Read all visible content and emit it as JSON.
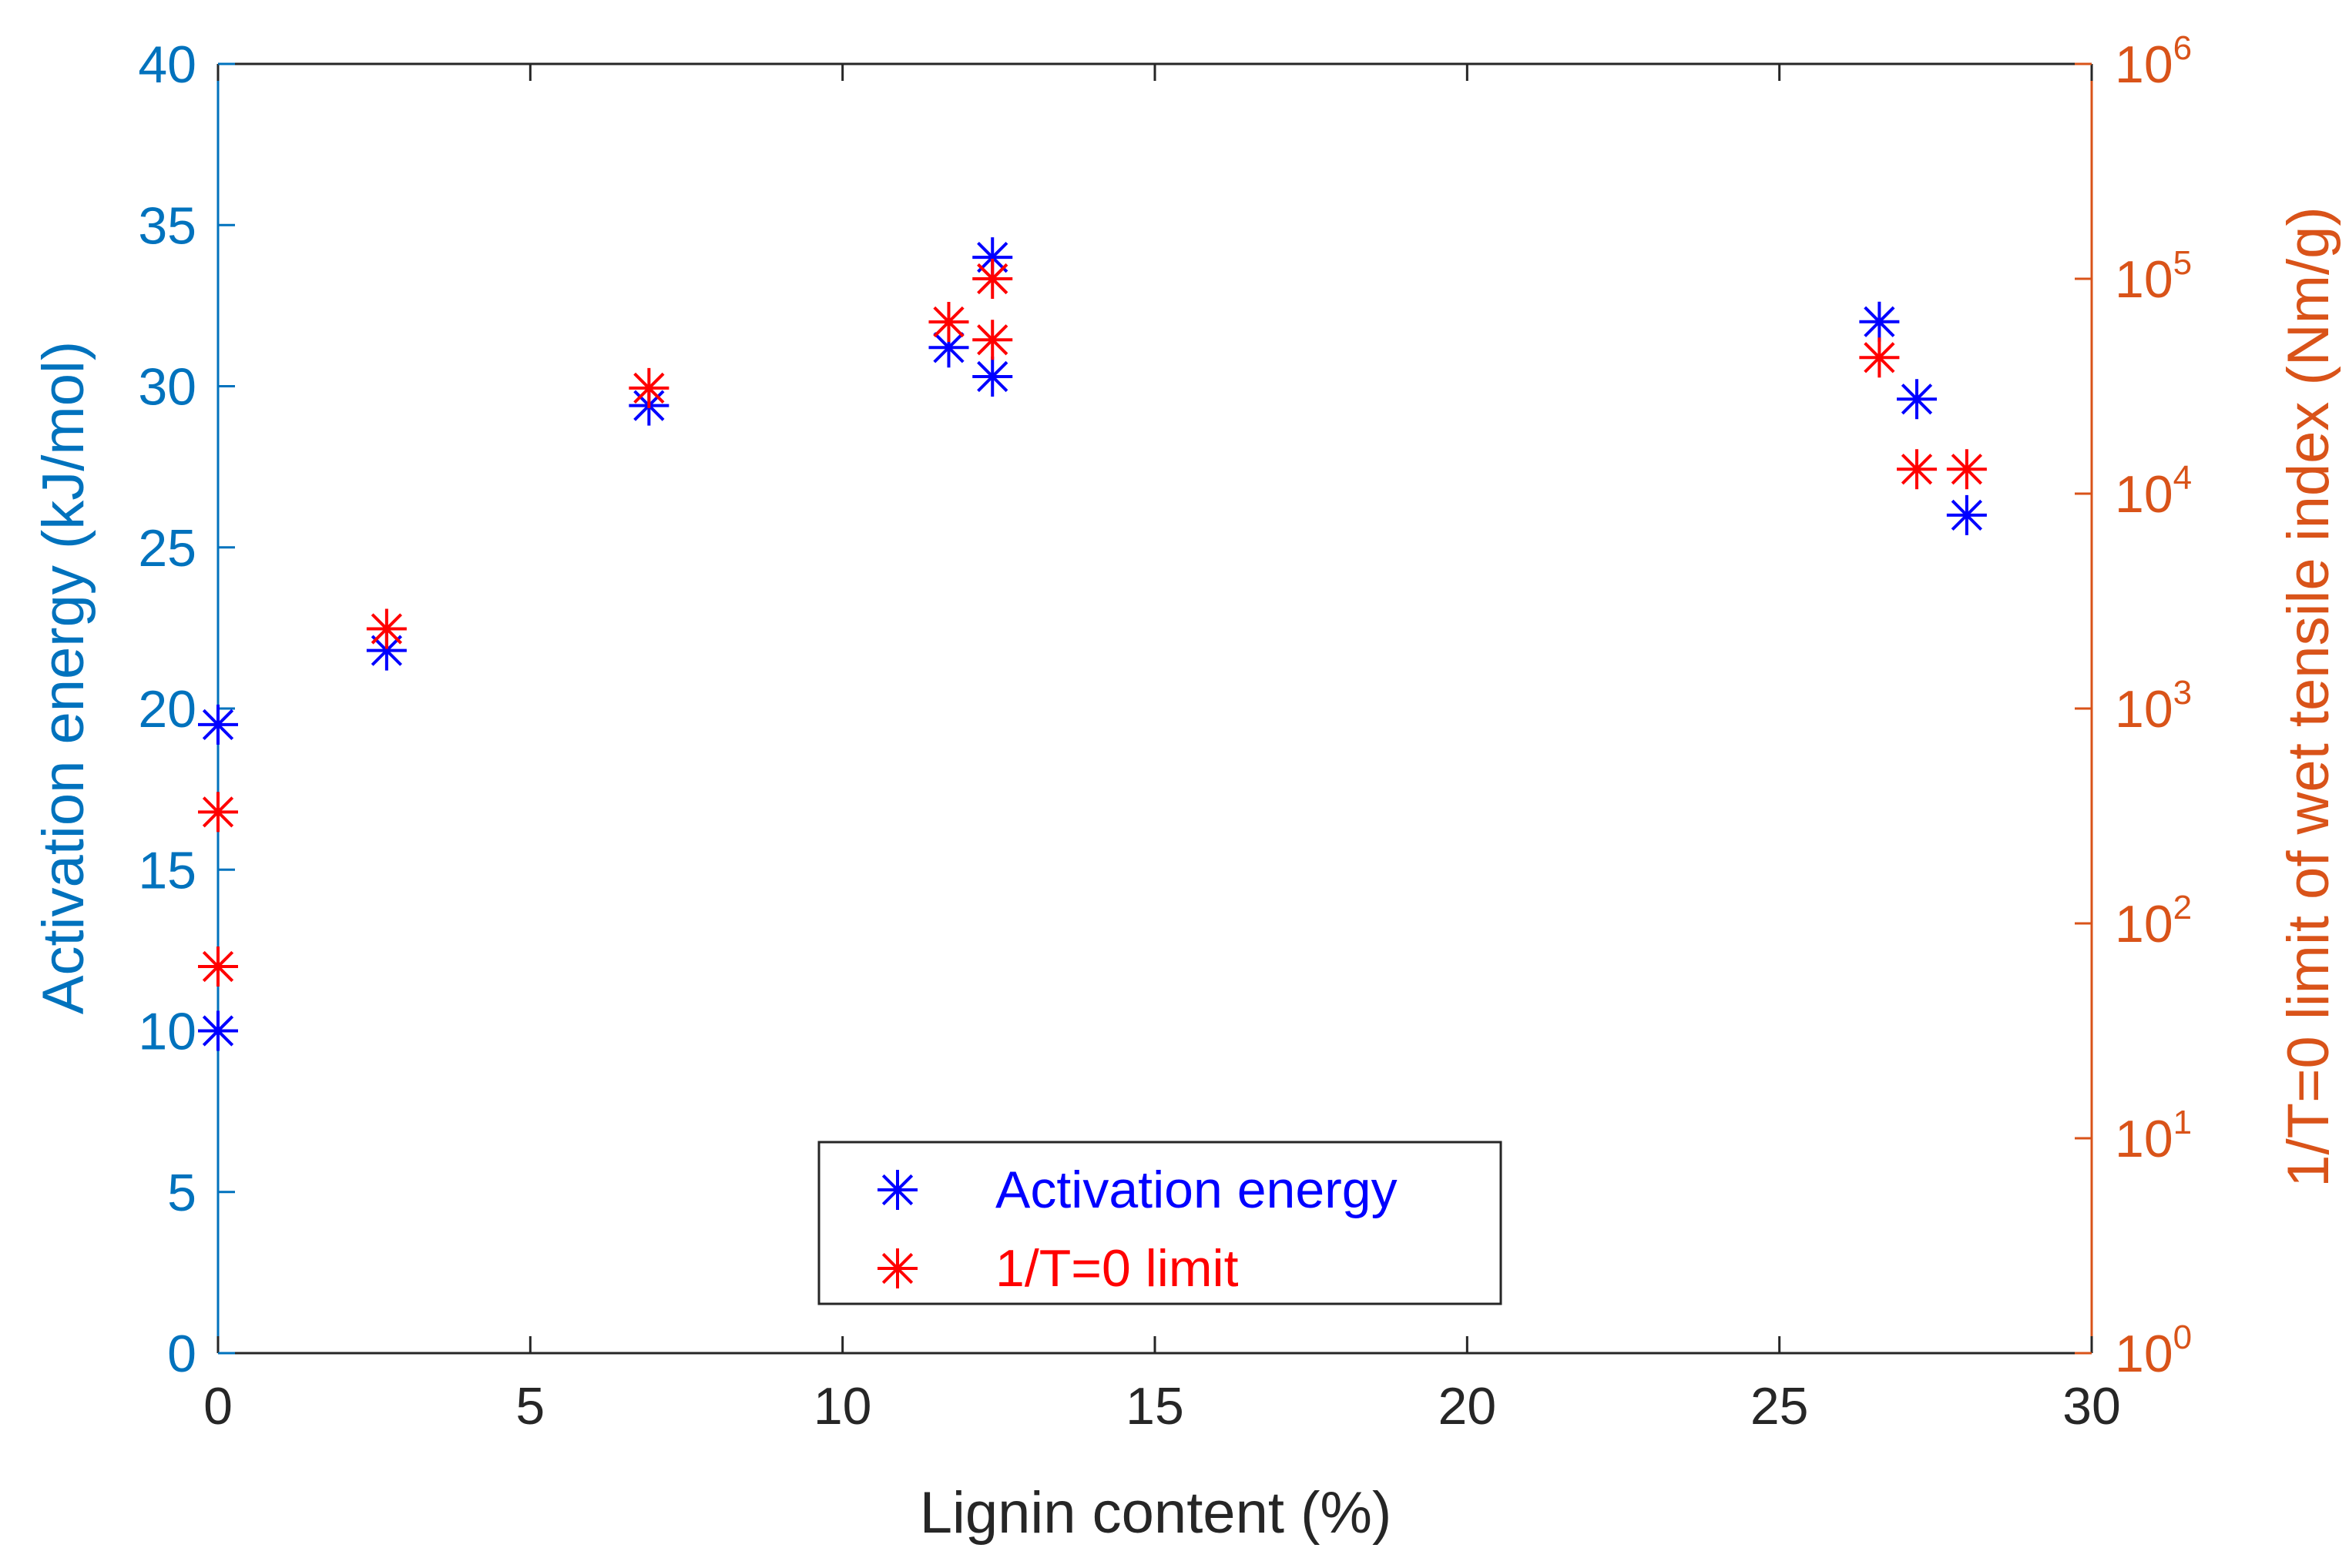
{
  "chart_data": {
    "type": "scatter",
    "xlabel": "Lignin content (%)",
    "ylabel_left": "Activation energy (kJ/mol)",
    "ylabel_right": "1/T=0 limit of wet tensile index (Nm/g)",
    "xlim": [
      0,
      30
    ],
    "ylim_left": [
      0,
      40
    ],
    "ylim_right_log10": [
      0,
      6
    ],
    "xticks": [
      0,
      5,
      10,
      15,
      20,
      25,
      30
    ],
    "yticks_left": [
      0,
      5,
      10,
      15,
      20,
      25,
      30,
      35,
      40
    ],
    "yticks_right_exponents": [
      0,
      1,
      2,
      3,
      4,
      5,
      6
    ],
    "yticks_right_base": "10",
    "grid": false,
    "legend_position": "bottom-center",
    "colors": {
      "left_axis": "#0072BD",
      "right_axis": "#D95319",
      "activation": "#0000FF",
      "limit": "#FF0000",
      "frame": "#262626"
    },
    "series": [
      {
        "name": "Activation energy",
        "axis": "left",
        "marker": "asterisk",
        "color": "#0000FF",
        "points": [
          {
            "x": 0,
            "y": 19.5
          },
          {
            "x": 0,
            "y": 10
          },
          {
            "x": 2.7,
            "y": 21.8
          },
          {
            "x": 6.9,
            "y": 29.4
          },
          {
            "x": 11.7,
            "y": 31.2
          },
          {
            "x": 12.4,
            "y": 34
          },
          {
            "x": 12.4,
            "y": 30.3
          },
          {
            "x": 26.6,
            "y": 32
          },
          {
            "x": 27.2,
            "y": 29.6
          },
          {
            "x": 28,
            "y": 26
          }
        ]
      },
      {
        "name": "1/T=0 limit",
        "axis": "right",
        "marker": "asterisk",
        "color": "#FF0000",
        "points": [
          {
            "x": 0,
            "y": 330
          },
          {
            "x": 0,
            "y": 63
          },
          {
            "x": 2.7,
            "y": 2350
          },
          {
            "x": 6.9,
            "y": 31000
          },
          {
            "x": 11.7,
            "y": 63000
          },
          {
            "x": 12.4,
            "y": 100000
          },
          {
            "x": 12.4,
            "y": 52000
          },
          {
            "x": 26.6,
            "y": 43000
          },
          {
            "x": 27.2,
            "y": 13000
          },
          {
            "x": 28,
            "y": 13000
          }
        ]
      }
    ],
    "legend": [
      "Activation energy",
      "1/T=0 limit"
    ]
  }
}
